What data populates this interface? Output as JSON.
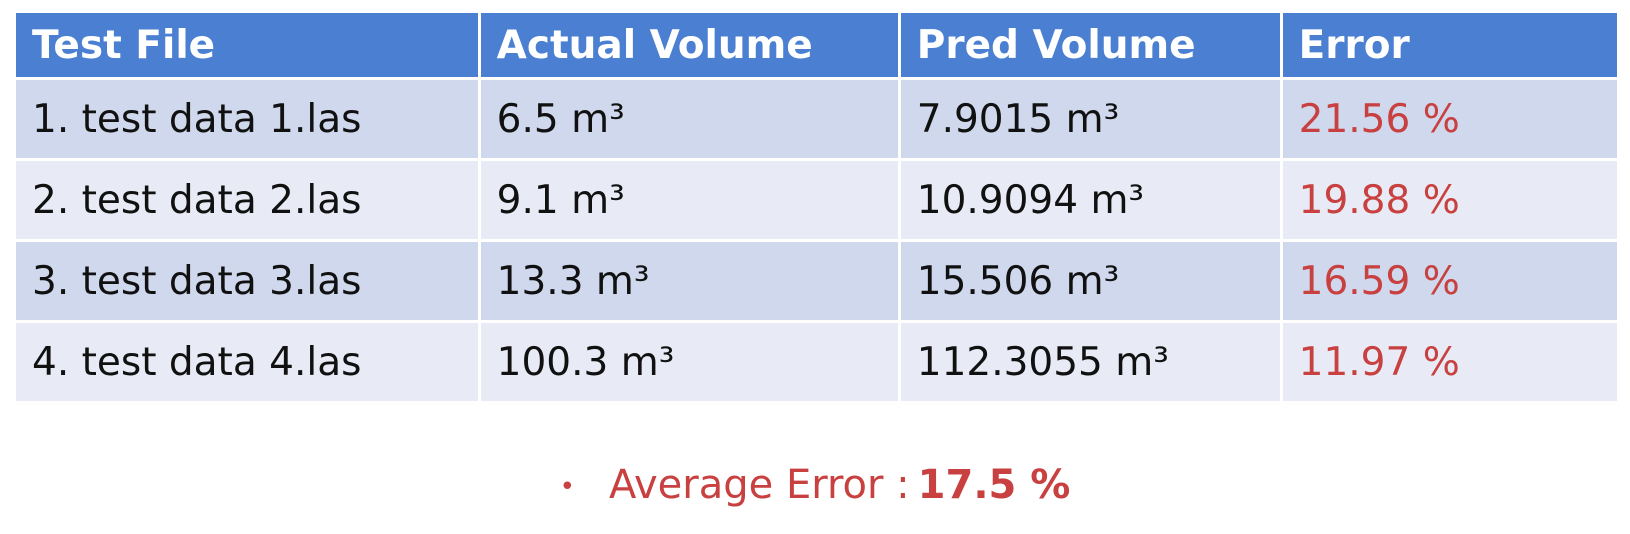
{
  "table": {
    "header": [
      "Test File",
      "Actual Volume",
      "Pred Volume",
      "Error"
    ],
    "rows": [
      [
        "1. test data 1.las",
        "6.5 m³",
        "7.9015 m³",
        "21.56 %"
      ],
      [
        "2. test data 2.las",
        "9.1 m³",
        "10.9094 m³",
        "19.88 %"
      ],
      [
        "3. test data 3.las",
        "13.3 m³",
        "15.506 m³",
        "16.59 %"
      ],
      [
        "4. test data 4.las",
        "100.3 m³",
        "112.3055 m³",
        "11.97 %"
      ]
    ]
  },
  "summary": {
    "label": "Average Error :",
    "value": "17.5 %"
  }
}
